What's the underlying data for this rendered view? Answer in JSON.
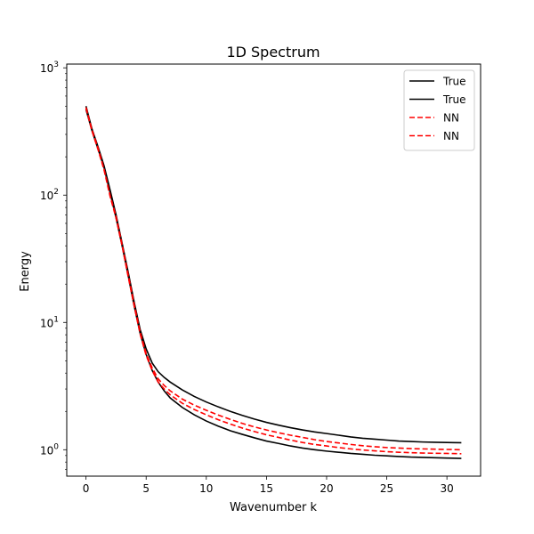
{
  "chart_data": {
    "type": "line",
    "title": "1D Spectrum",
    "xlabel": "Wavenumber k",
    "ylabel": "Energy",
    "xlim": [
      -1.6,
      32.8
    ],
    "ylim": [
      0.62,
      1070
    ],
    "yscale": "log",
    "grid": false,
    "legend_position": "top-right",
    "x_ticks": [
      0,
      5,
      10,
      15,
      20,
      25,
      30
    ],
    "y_ticks": [
      {
        "value": 1,
        "base": "10",
        "exp": "0"
      },
      {
        "value": 10,
        "base": "10",
        "exp": "1"
      },
      {
        "value": 100,
        "base": "10",
        "exp": "2"
      },
      {
        "value": 1000,
        "base": "10",
        "exp": "3"
      }
    ],
    "series": [
      {
        "name": "True",
        "color": "#000000",
        "style": "solid",
        "x": [
          0,
          0.5,
          1,
          1.5,
          2,
          2.5,
          3,
          3.5,
          4,
          4.5,
          5,
          5.5,
          6,
          6.5,
          7,
          8,
          9,
          10,
          11,
          12,
          13,
          14,
          15,
          16,
          17,
          18,
          19,
          20,
          21,
          22,
          23,
          24,
          25,
          26,
          27,
          28,
          29,
          30,
          31.2
        ],
        "y": [
          500,
          330,
          240,
          170,
          110,
          70,
          42,
          25,
          14.5,
          8.8,
          6.2,
          4.8,
          4.1,
          3.7,
          3.4,
          2.95,
          2.62,
          2.37,
          2.17,
          2.0,
          1.86,
          1.74,
          1.64,
          1.56,
          1.49,
          1.43,
          1.38,
          1.34,
          1.3,
          1.26,
          1.23,
          1.21,
          1.19,
          1.17,
          1.16,
          1.15,
          1.145,
          1.14,
          1.135
        ]
      },
      {
        "name": "True",
        "color": "#000000",
        "style": "solid",
        "x": [
          0,
          0.5,
          1,
          1.5,
          2,
          2.5,
          3,
          3.5,
          4,
          4.5,
          5,
          5.5,
          6,
          6.5,
          7,
          8,
          9,
          10,
          11,
          12,
          13,
          14,
          15,
          16,
          17,
          18,
          19,
          20,
          21,
          22,
          23,
          24,
          25,
          26,
          27,
          28,
          29,
          30,
          31.2
        ],
        "y": [
          470,
          320,
          230,
          165,
          105,
          66,
          40,
          23.5,
          13.5,
          8.2,
          5.6,
          4.2,
          3.4,
          2.9,
          2.55,
          2.15,
          1.88,
          1.68,
          1.53,
          1.41,
          1.32,
          1.24,
          1.17,
          1.12,
          1.07,
          1.03,
          1.0,
          0.975,
          0.955,
          0.935,
          0.92,
          0.905,
          0.895,
          0.885,
          0.875,
          0.87,
          0.865,
          0.86,
          0.855
        ]
      },
      {
        "name": "NN",
        "color": "#ff0000",
        "style": "dashed",
        "x": [
          0,
          0.5,
          1,
          1.5,
          2,
          2.5,
          3,
          3.5,
          4,
          4.5,
          5,
          5.5,
          6,
          6.5,
          7,
          8,
          9,
          10,
          11,
          12,
          13,
          14,
          15,
          16,
          17,
          18,
          19,
          20,
          21,
          22,
          23,
          24,
          25,
          26,
          27,
          28,
          29,
          30,
          31.2
        ],
        "y": [
          490,
          325,
          235,
          160,
          100,
          68,
          41,
          24,
          14,
          8.4,
          5.7,
          4.4,
          3.6,
          3.2,
          2.9,
          2.5,
          2.24,
          2.04,
          1.87,
          1.73,
          1.61,
          1.51,
          1.43,
          1.36,
          1.3,
          1.25,
          1.2,
          1.16,
          1.13,
          1.1,
          1.075,
          1.055,
          1.04,
          1.03,
          1.02,
          1.015,
          1.01,
          1.005,
          1.0
        ]
      },
      {
        "name": "NN",
        "color": "#ff0000",
        "style": "dashed",
        "x": [
          0,
          0.5,
          1,
          1.5,
          2,
          2.5,
          3,
          3.5,
          4,
          4.5,
          5,
          5.5,
          6,
          6.5,
          7,
          8,
          9,
          10,
          11,
          12,
          13,
          14,
          15,
          16,
          17,
          18,
          19,
          20,
          21,
          22,
          23,
          24,
          25,
          26,
          27,
          28,
          29,
          30,
          31.2
        ],
        "y": [
          480,
          318,
          228,
          158,
          98,
          66,
          40,
          23,
          13.6,
          8.1,
          5.5,
          4.2,
          3.4,
          3.0,
          2.7,
          2.32,
          2.07,
          1.88,
          1.72,
          1.59,
          1.48,
          1.39,
          1.31,
          1.25,
          1.19,
          1.14,
          1.1,
          1.07,
          1.04,
          1.015,
          0.995,
          0.98,
          0.965,
          0.955,
          0.948,
          0.942,
          0.938,
          0.935,
          0.93
        ]
      }
    ]
  }
}
